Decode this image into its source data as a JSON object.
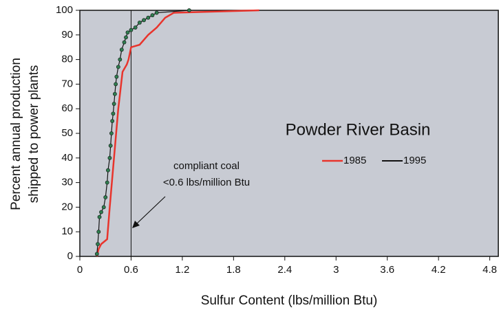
{
  "chart_data": {
    "type": "line",
    "title": "Powder River Basin",
    "xlabel": "Sulfur Content (lbs/million Btu)",
    "ylabel": [
      "Percent annual production",
      "shipped to power plants"
    ],
    "annotation": [
      "compliant coal",
      "<0.6 lbs/million Btu"
    ],
    "vline": 0.6,
    "xlim": [
      0,
      4.9
    ],
    "ylim": [
      0,
      100
    ],
    "xticks": [
      0,
      0.6,
      1.2,
      1.8,
      2.4,
      3,
      3.6,
      4.2,
      4.8
    ],
    "yticks": [
      0,
      10,
      20,
      30,
      40,
      50,
      60,
      70,
      80,
      90,
      100
    ],
    "background": "#c8cbd3",
    "series": [
      {
        "name": "1985",
        "color": "#e8342c",
        "x": [
          0.2,
          0.22,
          0.25,
          0.32,
          0.35,
          0.4,
          0.45,
          0.5,
          0.55,
          0.57,
          0.6,
          0.7,
          0.8,
          0.9,
          0.95,
          1.0,
          1.1,
          2.1
        ],
        "values": [
          0,
          3,
          5,
          7,
          20,
          40,
          60,
          75,
          78,
          80,
          85,
          86,
          90,
          93,
          95,
          97,
          99,
          100
        ]
      },
      {
        "name": "1995",
        "color": "#111111",
        "marker_color": "#2f7d4f",
        "x": [
          0.2,
          0.21,
          0.22,
          0.23,
          0.25,
          0.28,
          0.3,
          0.32,
          0.33,
          0.35,
          0.36,
          0.37,
          0.38,
          0.39,
          0.4,
          0.41,
          0.42,
          0.43,
          0.45,
          0.47,
          0.49,
          0.52,
          0.54,
          0.56,
          0.6,
          0.65,
          0.7,
          0.75,
          0.8,
          0.85,
          0.9,
          1.28
        ],
        "values": [
          1,
          5,
          10,
          16,
          18,
          20,
          24,
          30,
          35,
          40,
          45,
          50,
          55,
          58,
          62,
          66,
          70,
          73,
          77,
          80,
          84,
          87,
          89,
          91,
          92,
          93,
          95,
          96,
          97,
          98,
          99,
          100
        ]
      }
    ]
  }
}
